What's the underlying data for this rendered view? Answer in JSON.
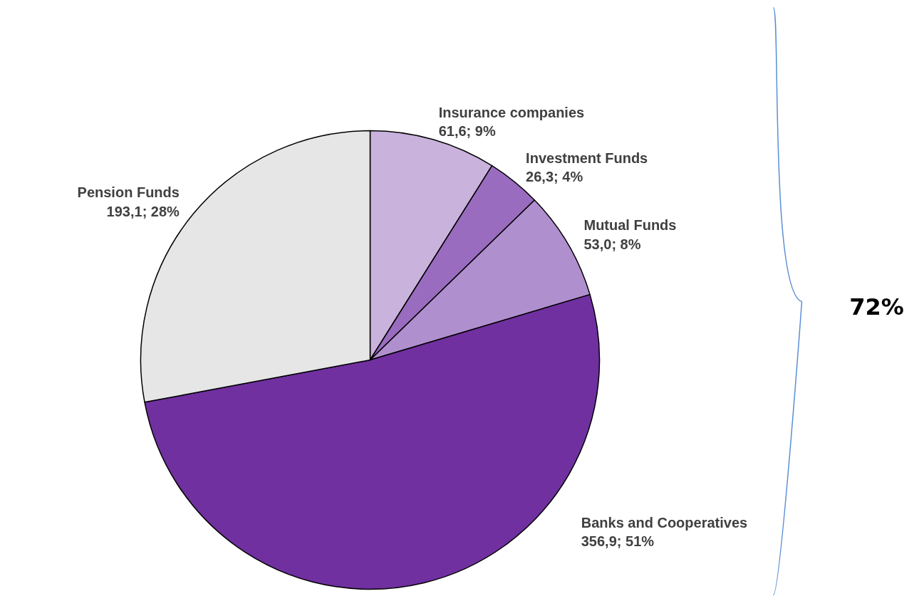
{
  "chart_data": {
    "type": "pie",
    "categories": [
      "Insurance companies",
      "Investment Funds",
      "Mutual Funds",
      "Banks and Cooperatives",
      "Pension Funds"
    ],
    "values": [
      61.6,
      26.3,
      53.0,
      356.9,
      193.1
    ],
    "colors": [
      "#c9b3dd",
      "#9a6cc0",
      "#b08fcf",
      "#7030a0",
      "#e6e6e6"
    ],
    "value_labels": [
      "61,6; 9%",
      "26,3; 4%",
      "53,0; 8%",
      "356,9; 51%",
      "193,1; 28%"
    ],
    "annotations": [
      "72%"
    ]
  }
}
